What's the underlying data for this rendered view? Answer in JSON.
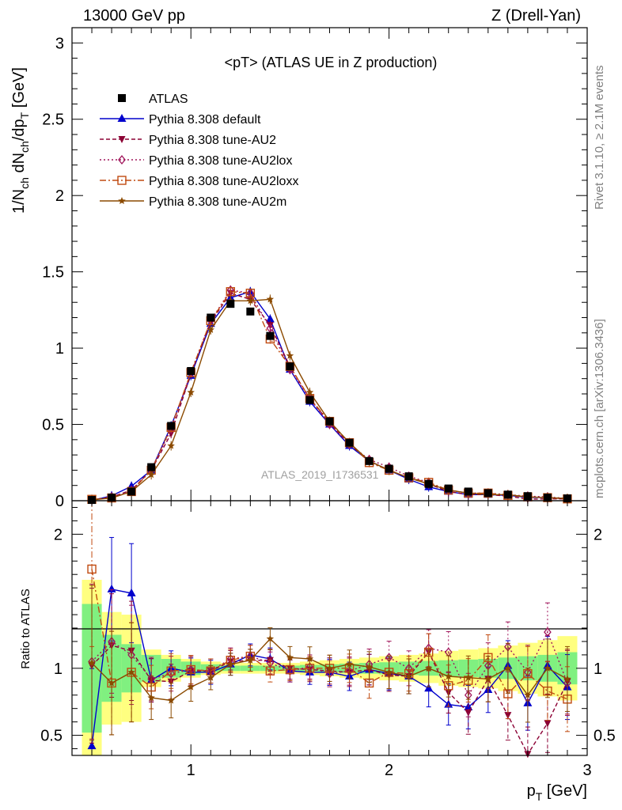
{
  "header": {
    "left": "13000 GeV pp",
    "right": "Z (Drell-Yan)"
  },
  "side_labels": {
    "rivet": "Rivet 3.1.10, ≥ 2.1M events",
    "mcplots": "mcplots.cern.ch [arXiv:1306.3436]"
  },
  "colors": {
    "atlas": "#000000",
    "default": "#0000cc",
    "au2": "#8b0034",
    "au2lox": "#a0145a",
    "au2loxx": "#c04a10",
    "au2m": "#8b4a00",
    "band_inner": "#80f080",
    "band_outer": "#ffff80"
  },
  "chart_data": [
    {
      "type": "line",
      "title": "<pT> (ATLAS UE in Z production)",
      "watermark": "ATLAS_2019_I1736531",
      "xlabel": "p_T [GeV]",
      "ylabel": "1/N_ch dN_ch/dp_T [GeV]",
      "xlim": [
        0.4,
        3.0
      ],
      "ylim": [
        0,
        3.1
      ],
      "yticks": [
        0,
        0.5,
        1,
        1.5,
        2,
        2.5,
        3
      ],
      "ytick_labels": [
        "0",
        "0.5",
        "1",
        "1.5",
        "2",
        "2.5",
        "3"
      ],
      "x": [
        0.5,
        0.6,
        0.7,
        0.8,
        0.9,
        1.0,
        1.1,
        1.2,
        1.3,
        1.4,
        1.5,
        1.6,
        1.7,
        1.8,
        1.9,
        2.0,
        2.1,
        2.2,
        2.3,
        2.4,
        2.5,
        2.6,
        2.7,
        2.8,
        2.9
      ],
      "legend_position": "top-left",
      "series": [
        {
          "name": "ATLAS",
          "key": "atlas",
          "marker": "square",
          "values": [
            0.005,
            0.02,
            0.06,
            0.22,
            0.49,
            0.85,
            1.2,
            1.29,
            1.24,
            1.08,
            0.88,
            0.66,
            0.52,
            0.38,
            0.26,
            0.21,
            0.16,
            0.11,
            0.08,
            0.06,
            0.05,
            0.04,
            0.03,
            0.02,
            0.015
          ]
        },
        {
          "name": "Pythia 8.308 default",
          "key": "default",
          "marker": "triangle-up",
          "values": [
            0.002,
            0.032,
            0.095,
            0.2,
            0.49,
            0.82,
            1.16,
            1.33,
            1.37,
            1.19,
            0.86,
            0.65,
            0.5,
            0.36,
            0.26,
            0.2,
            0.14,
            0.09,
            0.06,
            0.04,
            0.04,
            0.035,
            0.022,
            0.02,
            0.012
          ]
        },
        {
          "name": "Pythia 8.308 tune-AU2",
          "key": "au2",
          "marker": "triangle-down",
          "values": [
            0.005,
            0.024,
            0.07,
            0.2,
            0.44,
            0.83,
            1.17,
            1.36,
            1.32,
            1.15,
            0.88,
            0.67,
            0.51,
            0.37,
            0.26,
            0.2,
            0.15,
            0.11,
            0.06,
            0.04,
            0.04,
            0.03,
            0.01,
            0.012,
            0.012
          ]
        },
        {
          "name": "Pythia 8.308 tune-AU2lox",
          "key": "au2lox",
          "marker": "diamond",
          "values": [
            0.005,
            0.024,
            0.065,
            0.2,
            0.47,
            0.84,
            1.18,
            1.38,
            1.36,
            1.13,
            0.86,
            0.67,
            0.5,
            0.37,
            0.27,
            0.22,
            0.16,
            0.12,
            0.07,
            0.05,
            0.05,
            0.04,
            0.03,
            0.025,
            0.015
          ]
        },
        {
          "name": "Pythia 8.308 tune-AU2loxx",
          "key": "au2loxx",
          "marker": "open-square",
          "values": [
            0.009,
            0.018,
            0.06,
            0.2,
            0.48,
            0.84,
            1.18,
            1.37,
            1.36,
            1.06,
            0.88,
            0.67,
            0.52,
            0.38,
            0.25,
            0.2,
            0.15,
            0.12,
            0.07,
            0.05,
            0.05,
            0.035,
            0.025,
            0.02,
            0.012
          ]
        },
        {
          "name": "Pythia 8.308 tune-AU2m",
          "key": "au2m",
          "marker": "star",
          "values": [
            0.005,
            0.018,
            0.06,
            0.17,
            0.36,
            0.71,
            1.12,
            1.31,
            1.31,
            1.32,
            0.95,
            0.71,
            0.52,
            0.38,
            0.26,
            0.2,
            0.15,
            0.11,
            0.07,
            0.05,
            0.04,
            0.04,
            0.025,
            0.02,
            0.015
          ]
        }
      ]
    },
    {
      "type": "line",
      "ylabel": "Ratio to ATLAS",
      "xlabel": "p_T [GeV]",
      "xlim": [
        0.4,
        3.0
      ],
      "ylim": [
        0.35,
        2.25
      ],
      "yticks": [
        0.5,
        1,
        2
      ],
      "ytick_labels": [
        "0.5",
        "1",
        "2"
      ],
      "xticks": [
        1,
        2,
        3
      ],
      "xtick_labels": [
        "1",
        "2",
        "3"
      ],
      "x": [
        0.5,
        0.6,
        0.7,
        0.8,
        0.9,
        1.0,
        1.1,
        1.2,
        1.3,
        1.4,
        1.5,
        1.6,
        1.7,
        1.8,
        1.9,
        2.0,
        2.1,
        2.2,
        2.3,
        2.4,
        2.5,
        2.6,
        2.7,
        2.8,
        2.9
      ],
      "band_inner": [
        0.48,
        0.25,
        0.18,
        0.1,
        0.07,
        0.05,
        0.03,
        0.02,
        0.02,
        0.02,
        0.02,
        0.025,
        0.03,
        0.035,
        0.04,
        0.045,
        0.05,
        0.055,
        0.06,
        0.065,
        0.07,
        0.08,
        0.09,
        0.1,
        0.12
      ],
      "band_outer": [
        0.66,
        0.42,
        0.4,
        0.14,
        0.1,
        0.07,
        0.05,
        0.04,
        0.04,
        0.04,
        0.04,
        0.05,
        0.06,
        0.07,
        0.08,
        0.09,
        0.1,
        0.11,
        0.13,
        0.14,
        0.15,
        0.17,
        0.19,
        0.21,
        0.24
      ],
      "series": [
        {
          "key": "default",
          "values": [
            0.42,
            1.59,
            1.56,
            0.91,
            1.0,
            0.97,
            0.97,
            1.03,
            1.1,
            1.07,
            0.98,
            0.97,
            0.97,
            0.94,
            0.99,
            0.96,
            0.94,
            0.85,
            0.73,
            0.71,
            0.84,
            1.02,
            0.74,
            1.02,
            0.86
          ]
        },
        {
          "key": "au2",
          "values": [
            1.02,
            1.17,
            1.13,
            0.91,
            0.9,
            0.98,
            0.98,
            1.05,
            1.06,
            1.06,
            1.0,
            0.99,
            0.98,
            0.97,
            0.99,
            0.95,
            0.94,
            1.12,
            0.82,
            0.67,
            0.92,
            0.65,
            0.36,
            0.59,
            0.9
          ]
        },
        {
          "key": "au2lox",
          "values": [
            1.05,
            1.2,
            1.1,
            0.92,
            0.96,
            0.99,
            0.98,
            1.07,
            1.09,
            1.04,
            0.98,
            1.01,
            0.96,
            0.98,
            1.03,
            1.08,
            1.0,
            1.15,
            1.12,
            0.8,
            1.02,
            1.16,
            0.97,
            1.27,
            0.89
          ]
        },
        {
          "key": "au2loxx",
          "values": [
            1.74,
            0.89,
            0.97,
            0.86,
            0.98,
            0.99,
            0.98,
            1.06,
            1.09,
            0.98,
            0.99,
            1.0,
            1.0,
            1.0,
            0.89,
            0.97,
            0.96,
            1.12,
            0.87,
            0.91,
            1.08,
            0.81,
            0.96,
            0.83,
            0.77
          ]
        },
        {
          "key": "au2m",
          "values": [
            1.04,
            0.89,
            0.97,
            0.78,
            0.76,
            0.86,
            0.93,
            1.03,
            1.06,
            1.22,
            1.08,
            1.07,
            1.0,
            1.03,
            1.01,
            0.97,
            0.94,
            1.0,
            0.94,
            0.93,
            0.92,
            1.0,
            0.8,
            1.0,
            0.92
          ]
        }
      ]
    }
  ]
}
